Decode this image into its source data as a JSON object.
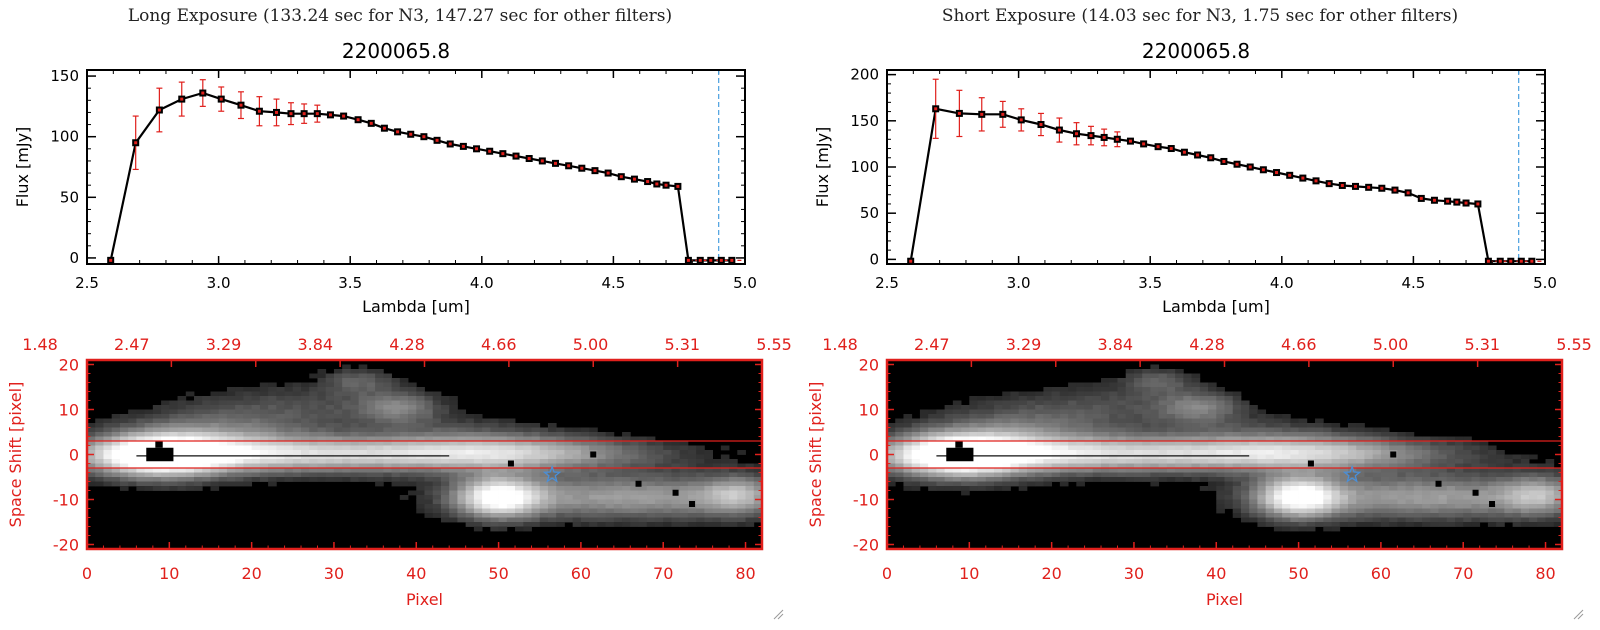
{
  "panels": [
    {
      "title": "Long Exposure (133.24 sec for N3, 147.27 sec for other filters)",
      "colors": {
        "line": "#000000",
        "errorbar": "#e0201c",
        "marker": "#000000",
        "spectrum_axis": "#e0201c",
        "cursor_line": "#4aa0e0",
        "star": "#4a8fd8"
      },
      "chart_data": [
        {
          "type": "line",
          "title": "2200065.8",
          "xlabel": "Lambda [um]",
          "ylabel": "Flux [mJy]",
          "xlim": [
            2.5,
            5.0
          ],
          "ylim": [
            -5,
            155
          ],
          "xticks": [
            2.5,
            3.0,
            3.5,
            4.0,
            4.5,
            5.0
          ],
          "xtick_labels": [
            "2.5",
            "3.0",
            "3.5",
            "4.0",
            "4.5",
            "5.0"
          ],
          "yticks": [
            0,
            50,
            100,
            150
          ],
          "ytick_labels": [
            "0",
            "50",
            "100",
            "150"
          ],
          "vline_x": 4.9,
          "series": [
            {
              "x": [
                2.59,
                2.685,
                2.775,
                2.86,
                2.94,
                3.01,
                3.085,
                3.155,
                3.22,
                3.275,
                3.325,
                3.375,
                3.425,
                3.475,
                3.53,
                3.58,
                3.63,
                3.68,
                3.73,
                3.78,
                3.83,
                3.88,
                3.93,
                3.98,
                4.03,
                4.08,
                4.13,
                4.18,
                4.23,
                4.28,
                4.33,
                4.38,
                4.43,
                4.48,
                4.53,
                4.58,
                4.63,
                4.665,
                4.7,
                4.745,
                4.785,
                4.83,
                4.87,
                4.91,
                4.95
              ],
              "y": [
                -2,
                95,
                122,
                131,
                136,
                131,
                126,
                121,
                120,
                119,
                119,
                119,
                118,
                117,
                114,
                111,
                107,
                104,
                102,
                100,
                97,
                94,
                92,
                90,
                88,
                86,
                84,
                82,
                80,
                78,
                76,
                74,
                72,
                70,
                67,
                65,
                63,
                61,
                60,
                59,
                -2,
                -2,
                -2,
                -2,
                -2
              ],
              "yerr": [
                0,
                22,
                18,
                14,
                11,
                10,
                11,
                12,
                11,
                9,
                8,
                7,
                0,
                0,
                0,
                0,
                0,
                0,
                0,
                0,
                0,
                0,
                0,
                0,
                0,
                0,
                0,
                0,
                0,
                0,
                0,
                0,
                0,
                0,
                0,
                0,
                0,
                0,
                0,
                0,
                0,
                0,
                0,
                0,
                0
              ]
            }
          ]
        },
        {
          "type": "heatmap",
          "xlabel": "Pixel",
          "ylabel": "Space Shift [pixel]",
          "xlim": [
            0,
            82
          ],
          "ylim": [
            -21,
            21
          ],
          "xticks": [
            0,
            10,
            20,
            30,
            40,
            50,
            60,
            70,
            80
          ],
          "xtick_labels": [
            "0",
            "10",
            "20",
            "30",
            "40",
            "50",
            "60",
            "70",
            "80"
          ],
          "yticks": [
            -20,
            -10,
            0,
            10,
            20
          ],
          "ytick_labels": [
            "-20",
            "-10",
            "0",
            "10",
            "20"
          ],
          "top_tick_labels": [
            "1.48",
            "2.47",
            "3.29",
            "3.84",
            "4.28",
            "4.66",
            "5.00",
            "5.31",
            "5.55"
          ],
          "hlines": [
            3,
            -3
          ],
          "star": [
            56.5,
            -4.5
          ]
        }
      ]
    },
    {
      "title": "Short Exposure (14.03 sec for N3, 1.75 sec for other filters)",
      "colors": {
        "line": "#000000",
        "errorbar": "#e0201c",
        "marker": "#000000",
        "spectrum_axis": "#e0201c",
        "cursor_line": "#4aa0e0",
        "star": "#4a8fd8"
      },
      "chart_data": [
        {
          "type": "line",
          "title": "2200065.8",
          "xlabel": "Lambda [um]",
          "ylabel": "Flux [mJy]",
          "xlim": [
            2.5,
            5.0
          ],
          "ylim": [
            -5,
            205
          ],
          "xticks": [
            2.5,
            3.0,
            3.5,
            4.0,
            4.5,
            5.0
          ],
          "xtick_labels": [
            "2.5",
            "3.0",
            "3.5",
            "4.0",
            "4.5",
            "5.0"
          ],
          "yticks": [
            0,
            50,
            100,
            150,
            200
          ],
          "ytick_labels": [
            "0",
            "50",
            "100",
            "150",
            "200"
          ],
          "vline_x": 4.9,
          "series": [
            {
              "x": [
                2.59,
                2.685,
                2.775,
                2.86,
                2.94,
                3.01,
                3.085,
                3.155,
                3.22,
                3.275,
                3.325,
                3.375,
                3.425,
                3.475,
                3.53,
                3.58,
                3.63,
                3.68,
                3.73,
                3.78,
                3.83,
                3.88,
                3.93,
                3.98,
                4.03,
                4.08,
                4.13,
                4.18,
                4.23,
                4.28,
                4.33,
                4.38,
                4.43,
                4.48,
                4.53,
                4.58,
                4.63,
                4.665,
                4.7,
                4.745,
                4.785,
                4.83,
                4.87,
                4.91,
                4.95
              ],
              "y": [
                -2,
                163,
                158,
                157,
                157,
                151,
                146,
                140,
                136,
                134,
                132,
                130,
                128,
                125,
                122,
                120,
                116,
                113,
                110,
                106,
                103,
                100,
                97,
                94,
                91,
                88,
                85,
                82,
                80,
                79,
                78,
                77,
                75,
                72,
                66,
                64,
                63,
                62,
                61,
                60,
                -2,
                -2,
                -2,
                -2,
                -2
              ],
              "yerr": [
                0,
                32,
                25,
                18,
                14,
                12,
                12,
                13,
                12,
                10,
                9,
                8,
                0,
                0,
                0,
                0,
                0,
                0,
                0,
                0,
                0,
                0,
                0,
                0,
                0,
                0,
                0,
                0,
                0,
                0,
                0,
                0,
                0,
                0,
                0,
                0,
                0,
                0,
                0,
                0,
                0,
                0,
                0,
                0,
                0
              ]
            }
          ]
        },
        {
          "type": "heatmap",
          "xlabel": "Pixel",
          "ylabel": "Space Shift [pixel]",
          "xlim": [
            0,
            82
          ],
          "ylim": [
            -21,
            21
          ],
          "xticks": [
            0,
            10,
            20,
            30,
            40,
            50,
            60,
            70,
            80
          ],
          "xtick_labels": [
            "0",
            "10",
            "20",
            "30",
            "40",
            "50",
            "60",
            "70",
            "80"
          ],
          "yticks": [
            -20,
            -10,
            0,
            10,
            20
          ],
          "ytick_labels": [
            "-20",
            "-10",
            "0",
            "10",
            "20"
          ],
          "top_tick_labels": [
            "1.48",
            "2.47",
            "3.29",
            "3.84",
            "4.28",
            "4.66",
            "5.00",
            "5.31",
            "5.55"
          ],
          "hlines": [
            3,
            -3
          ],
          "star": [
            56.5,
            -4.5
          ]
        }
      ]
    }
  ]
}
